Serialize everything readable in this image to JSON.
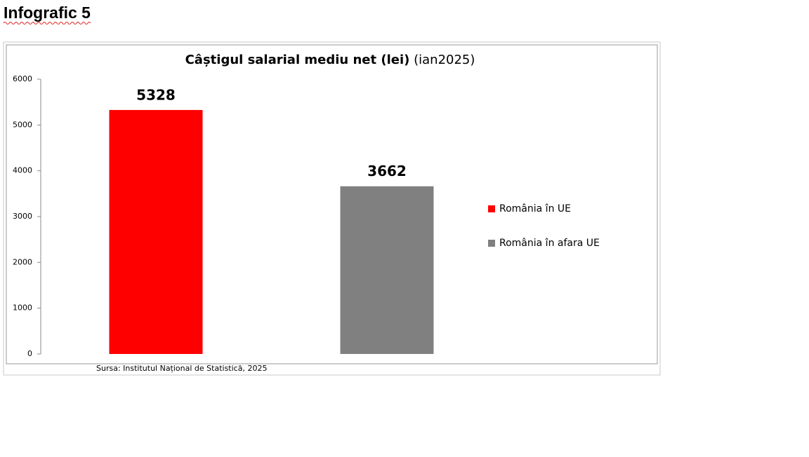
{
  "heading": "Infografic 5",
  "chart_data": {
    "type": "bar",
    "title": "Câștigul salarial mediu net (lei)",
    "subtitle": "(ian2025)",
    "series": [
      {
        "name": "România în UE",
        "color": "#ff0000",
        "values": [
          5328
        ]
      },
      {
        "name": "România în afara UE",
        "color": "#808080",
        "values": [
          3662
        ]
      }
    ],
    "ylim": [
      0,
      6000
    ],
    "yticks": [
      0,
      1000,
      2000,
      3000,
      4000,
      5000,
      6000
    ],
    "grid": false,
    "legend": "right",
    "source": "Sursa: Institutul Național de Statistică, 2025"
  }
}
